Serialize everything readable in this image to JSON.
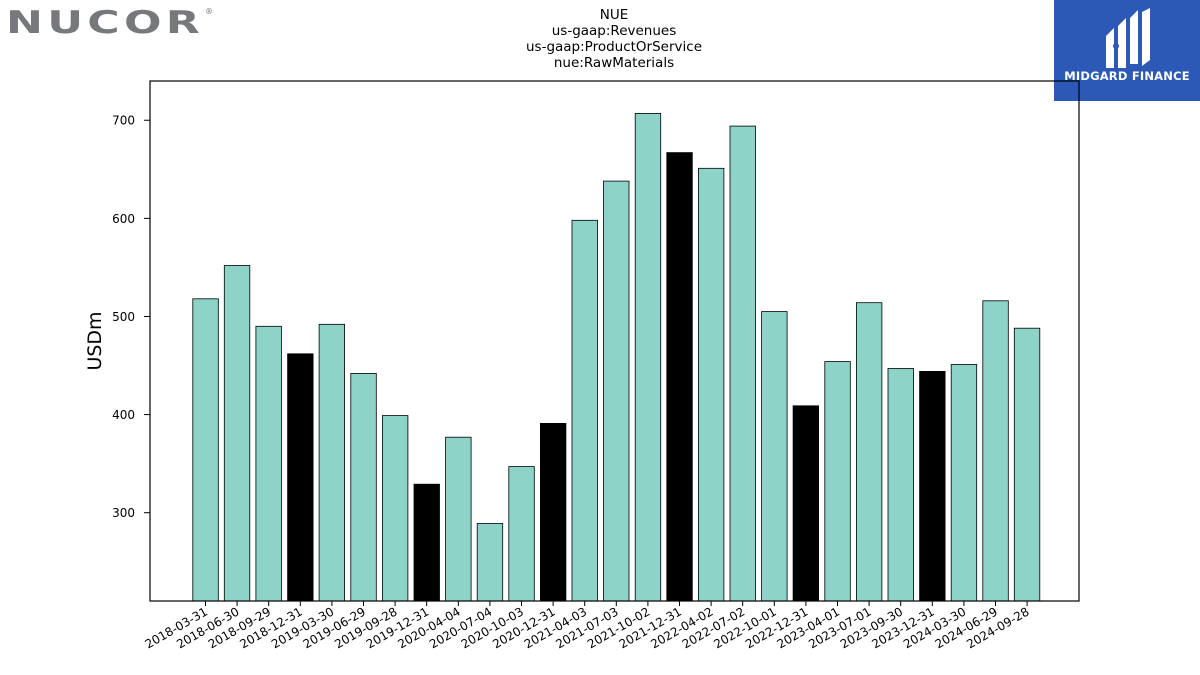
{
  "header": {
    "company_logo_text": "NUCOR",
    "brand_text": "MIDGARD FINANCE"
  },
  "colors": {
    "bar_regular": "#8dd3c7",
    "bar_year_end": "#000000",
    "nucor_gray": "#77787b",
    "brand_blue": "#2b59b5"
  },
  "chart_data": {
    "type": "bar",
    "title_lines": [
      "NUE",
      "us-gaap:Revenues",
      "us-gaap:ProductOrService",
      "nue:RawMaterials"
    ],
    "xlabel": "",
    "ylabel": "USDm",
    "ylim": [
      210,
      740
    ],
    "yticks": [
      300,
      400,
      500,
      600,
      700
    ],
    "grid": false,
    "categories": [
      "2018-03-31",
      "2018-06-30",
      "2018-09-29",
      "2018-12-31",
      "2019-03-30",
      "2019-06-29",
      "2019-09-28",
      "2019-12-31",
      "2020-04-04",
      "2020-07-04",
      "2020-10-03",
      "2020-12-31",
      "2021-04-03",
      "2021-07-03",
      "2021-10-02",
      "2021-12-31",
      "2022-04-02",
      "2022-07-02",
      "2022-10-01",
      "2022-12-31",
      "2023-04-01",
      "2023-07-01",
      "2023-09-30",
      "2023-12-31",
      "2024-03-30",
      "2024-06-29",
      "2024-09-28"
    ],
    "values": [
      518,
      552,
      490,
      462,
      492,
      442,
      399,
      329,
      377,
      289,
      347,
      391,
      598,
      638,
      707,
      667,
      651,
      694,
      505,
      409,
      454,
      514,
      447,
      444,
      451,
      516,
      488
    ],
    "highlight": [
      false,
      false,
      false,
      true,
      false,
      false,
      false,
      true,
      false,
      false,
      false,
      true,
      false,
      false,
      false,
      true,
      false,
      false,
      false,
      true,
      false,
      false,
      false,
      true,
      false,
      false,
      false
    ]
  }
}
